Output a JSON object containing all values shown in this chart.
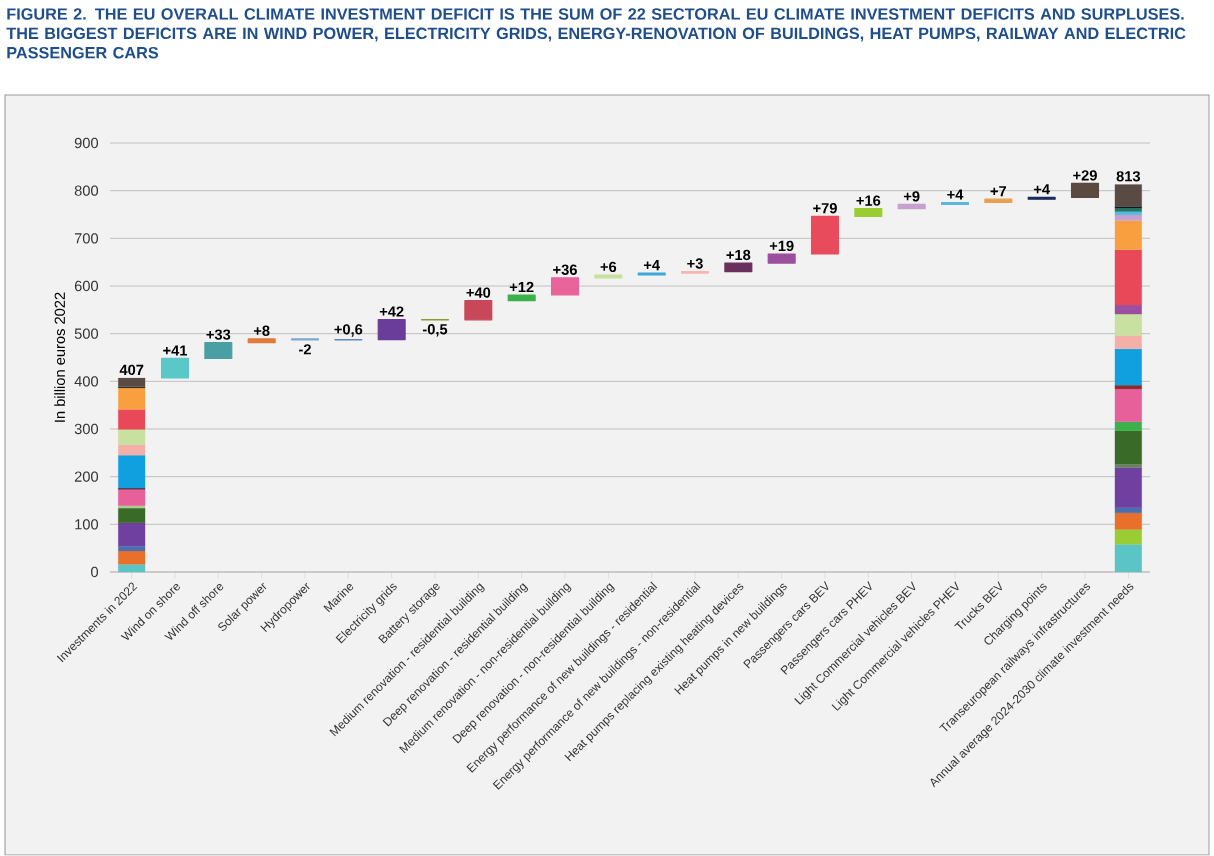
{
  "chart_data": {
    "type": "bar",
    "title": "FIGURE 2. THE EU OVERALL CLIMATE INVESTMENT DEFICIT IS THE SUM OF 22 SECTORAL EU CLIMATE INVESTMENT DEFICITS AND SURPLUSES. THE BIGGEST DEFICITS ARE IN WIND POWER, ELECTRICITY GRIDS, ENERGY-RENOVATION OF BUILDINGS, HEAT PUMPS, RAILWAY AND ELECTRIC PASSENGER CARS",
    "ylabel": "In billion euros 2022",
    "categories": [
      "Investments in 2022",
      "Wind on shore",
      "Wind off shore",
      "Solar power",
      "Hydropower",
      "Marine",
      "Electricity grids",
      "Battery storage",
      "Medium renovation - residential building",
      "Deep renovation - residential building",
      "Medium renovation - non-residential building",
      "Deep renovation - non-residential building",
      "Energy performance of new buildings - residential",
      "Energy performance of new buildings - non-residential",
      "Heat pumps replacing existing heating devices",
      "Heat pumps in new buildings",
      "Passengers cars BEV",
      "Passengers cars PHEV",
      "Light Commercial vehicles BEV",
      "Light Commercial vehicles PHEV",
      "Trucks BEV",
      "Charging points",
      "Transeuropean railways infrastructures",
      "Annual average 2024-2030 climate investment needs"
    ],
    "stacked": true,
    "series": [
      {
        "values": [
          16,
          null,
          null,
          null,
          null,
          null,
          null,
          null,
          null,
          null,
          null,
          null,
          null,
          null,
          null,
          null,
          null,
          null,
          null,
          null,
          null,
          null,
          null,
          58
        ],
        "colors": [
          "#5bc4c4",
          null,
          null,
          null,
          null,
          null,
          null,
          null,
          null,
          null,
          null,
          null,
          null,
          null,
          null,
          null,
          null,
          null,
          null,
          null,
          null,
          null,
          null,
          "#5bc4c4"
        ]
      },
      {
        "values": [
          28,
          null,
          null,
          null,
          null,
          null,
          null,
          null,
          null,
          null,
          null,
          null,
          null,
          null,
          null,
          null,
          null,
          null,
          null,
          null,
          null,
          null,
          null,
          31
        ],
        "colors": [
          "#e8702a",
          null,
          null,
          null,
          null,
          null,
          null,
          null,
          null,
          null,
          null,
          null,
          null,
          null,
          null,
          null,
          null,
          null,
          null,
          null,
          null,
          null,
          null,
          "#9acd32"
        ]
      },
      {
        "values": [
          10,
          null,
          null,
          null,
          null,
          null,
          null,
          null,
          null,
          null,
          null,
          null,
          null,
          null,
          null,
          null,
          null,
          null,
          null,
          null,
          null,
          null,
          null,
          35
        ],
        "colors": [
          "#4a6fb0",
          null,
          null,
          null,
          null,
          null,
          null,
          null,
          null,
          null,
          null,
          null,
          null,
          null,
          null,
          null,
          null,
          null,
          null,
          null,
          null,
          null,
          null,
          "#e8702a"
        ]
      },
      {
        "values": [
          49,
          null,
          null,
          null,
          null,
          null,
          null,
          null,
          null,
          null,
          null,
          null,
          null,
          null,
          null,
          null,
          null,
          null,
          null,
          null,
          null,
          null,
          null,
          11
        ],
        "colors": [
          "#7040a0",
          null,
          null,
          null,
          null,
          null,
          null,
          null,
          null,
          null,
          null,
          null,
          null,
          null,
          null,
          null,
          null,
          null,
          null,
          null,
          null,
          null,
          null,
          "#4a6fb0"
        ]
      },
      {
        "values": [
          31,
          null,
          null,
          null,
          null,
          null,
          null,
          null,
          null,
          null,
          null,
          null,
          null,
          null,
          null,
          null,
          null,
          null,
          null,
          null,
          null,
          null,
          null,
          84
        ],
        "colors": [
          "#3a6a28",
          null,
          null,
          null,
          null,
          null,
          null,
          null,
          null,
          null,
          null,
          null,
          null,
          null,
          null,
          null,
          null,
          null,
          null,
          null,
          null,
          null,
          null,
          "#7040a0"
        ]
      },
      {
        "values": [
          5,
          null,
          null,
          null,
          null,
          null,
          null,
          null,
          null,
          null,
          null,
          null,
          null,
          null,
          null,
          null,
          null,
          null,
          null,
          null,
          null,
          null,
          null,
          7
        ],
        "colors": [
          "#a8d08a",
          null,
          null,
          null,
          null,
          null,
          null,
          null,
          null,
          null,
          null,
          null,
          null,
          null,
          null,
          null,
          null,
          null,
          null,
          null,
          null,
          null,
          null,
          "#6a8060"
        ]
      },
      {
        "values": [
          34,
          null,
          null,
          null,
          null,
          null,
          null,
          null,
          null,
          null,
          null,
          null,
          null,
          null,
          null,
          null,
          null,
          null,
          null,
          null,
          null,
          null,
          null,
          70
        ],
        "colors": [
          "#e8609a",
          null,
          null,
          null,
          null,
          null,
          null,
          null,
          null,
          null,
          null,
          null,
          null,
          null,
          null,
          null,
          null,
          null,
          null,
          null,
          null,
          null,
          null,
          "#3a6a28"
        ]
      },
      {
        "values": [
          3,
          null,
          null,
          null,
          null,
          null,
          null,
          null,
          null,
          null,
          null,
          null,
          null,
          null,
          null,
          null,
          null,
          null,
          null,
          null,
          null,
          null,
          null,
          19
        ],
        "colors": [
          "#5a2030",
          null,
          null,
          null,
          null,
          null,
          null,
          null,
          null,
          null,
          null,
          null,
          null,
          null,
          null,
          null,
          null,
          null,
          null,
          null,
          null,
          null,
          null,
          "#3cb04a"
        ]
      },
      {
        "values": [
          69,
          null,
          null,
          null,
          null,
          null,
          null,
          null,
          null,
          null,
          null,
          null,
          null,
          null,
          null,
          null,
          null,
          null,
          null,
          null,
          null,
          null,
          null,
          69
        ],
        "colors": [
          "#10a0e0",
          null,
          null,
          null,
          null,
          null,
          null,
          null,
          null,
          null,
          null,
          null,
          null,
          null,
          null,
          null,
          null,
          null,
          null,
          null,
          null,
          null,
          null,
          "#e8609a"
        ]
      },
      {
        "values": [
          22,
          null,
          null,
          null,
          null,
          null,
          null,
          null,
          null,
          null,
          null,
          null,
          null,
          null,
          null,
          null,
          null,
          null,
          null,
          null,
          null,
          null,
          null,
          8
        ],
        "colors": [
          "#f4b0a8",
          null,
          null,
          null,
          null,
          null,
          null,
          null,
          null,
          null,
          null,
          null,
          null,
          null,
          null,
          null,
          null,
          null,
          null,
          null,
          null,
          null,
          null,
          "#8a2a2a"
        ]
      },
      {
        "values": [
          32,
          null,
          null,
          null,
          null,
          null,
          null,
          null,
          null,
          null,
          null,
          null,
          null,
          null,
          null,
          null,
          null,
          null,
          null,
          null,
          null,
          null,
          null,
          76
        ],
        "colors": [
          "#c8e0a0",
          null,
          null,
          null,
          null,
          null,
          null,
          null,
          null,
          null,
          null,
          null,
          null,
          null,
          null,
          null,
          null,
          null,
          null,
          null,
          null,
          null,
          null,
          "#10a0e0"
        ]
      },
      {
        "values": [
          42,
          null,
          null,
          null,
          null,
          null,
          null,
          null,
          null,
          null,
          null,
          null,
          null,
          null,
          null,
          null,
          null,
          null,
          null,
          null,
          null,
          null,
          null,
          28
        ],
        "colors": [
          "#e84858",
          null,
          null,
          null,
          null,
          null,
          null,
          null,
          null,
          null,
          null,
          null,
          null,
          null,
          null,
          null,
          null,
          null,
          null,
          null,
          null,
          null,
          null,
          "#f4b0a8"
        ]
      },
      {
        "values": [
          45,
          null,
          null,
          null,
          null,
          null,
          null,
          null,
          null,
          null,
          null,
          null,
          null,
          null,
          null,
          null,
          null,
          null,
          null,
          null,
          null,
          null,
          null,
          45
        ],
        "colors": [
          "#f8a040",
          null,
          null,
          null,
          null,
          null,
          null,
          null,
          null,
          null,
          null,
          null,
          null,
          null,
          null,
          null,
          null,
          null,
          null,
          null,
          null,
          null,
          null,
          "#c8e0a0"
        ]
      },
      {
        "values": [
          3,
          null,
          null,
          null,
          null,
          null,
          null,
          null,
          null,
          null,
          null,
          null,
          null,
          null,
          null,
          null,
          null,
          null,
          null,
          null,
          null,
          null,
          null,
          19
        ],
        "colors": [
          "#303030",
          null,
          null,
          null,
          null,
          null,
          null,
          null,
          null,
          null,
          null,
          null,
          null,
          null,
          null,
          null,
          null,
          null,
          null,
          null,
          null,
          null,
          null,
          "#9b4f9e"
        ]
      },
      {
        "values": [
          18,
          null,
          null,
          null,
          null,
          null,
          null,
          null,
          null,
          null,
          null,
          null,
          null,
          null,
          null,
          null,
          null,
          null,
          null,
          null,
          null,
          null,
          null,
          116
        ],
        "colors": [
          "#5a4a44",
          null,
          null,
          null,
          null,
          null,
          null,
          null,
          null,
          null,
          null,
          null,
          null,
          null,
          null,
          null,
          null,
          null,
          null,
          null,
          null,
          null,
          null,
          "#e84858"
        ]
      },
      {
        "values": [
          null,
          null,
          null,
          null,
          null,
          null,
          null,
          null,
          null,
          null,
          null,
          null,
          null,
          null,
          null,
          null,
          null,
          null,
          null,
          null,
          null,
          null,
          null,
          61
        ],
        "colors": [
          null,
          null,
          null,
          null,
          null,
          null,
          null,
          null,
          null,
          null,
          null,
          null,
          null,
          null,
          null,
          null,
          null,
          null,
          null,
          null,
          null,
          null,
          null,
          "#f8a040"
        ]
      },
      {
        "values": [
          null,
          null,
          null,
          null,
          null,
          null,
          null,
          null,
          null,
          null,
          null,
          null,
          null,
          null,
          null,
          null,
          null,
          null,
          null,
          null,
          null,
          null,
          null,
          12
        ],
        "colors": [
          null,
          null,
          null,
          null,
          null,
          null,
          null,
          null,
          null,
          null,
          null,
          null,
          null,
          null,
          null,
          null,
          null,
          null,
          null,
          null,
          null,
          null,
          null,
          "#c8a0d0"
        ]
      },
      {
        "values": [
          null,
          null,
          null,
          null,
          null,
          null,
          null,
          null,
          null,
          null,
          null,
          null,
          null,
          null,
          null,
          null,
          null,
          null,
          null,
          null,
          null,
          null,
          null,
          7
        ],
        "colors": [
          null,
          null,
          null,
          null,
          null,
          null,
          null,
          null,
          null,
          null,
          null,
          null,
          null,
          null,
          null,
          null,
          null,
          null,
          null,
          null,
          null,
          null,
          null,
          "#5bb8e0"
        ]
      },
      {
        "values": [
          null,
          null,
          null,
          null,
          null,
          null,
          null,
          null,
          null,
          null,
          null,
          null,
          null,
          null,
          null,
          null,
          null,
          null,
          null,
          null,
          null,
          null,
          null,
          7
        ],
        "colors": [
          null,
          null,
          null,
          null,
          null,
          null,
          null,
          null,
          null,
          null,
          null,
          null,
          null,
          null,
          null,
          null,
          null,
          null,
          null,
          null,
          null,
          null,
          null,
          "#1a7a6a"
        ]
      },
      {
        "values": [
          null,
          null,
          null,
          null,
          null,
          null,
          null,
          null,
          null,
          null,
          null,
          null,
          null,
          null,
          null,
          null,
          null,
          null,
          null,
          null,
          null,
          null,
          null,
          4
        ],
        "colors": [
          null,
          null,
          null,
          null,
          null,
          null,
          null,
          null,
          null,
          null,
          null,
          null,
          null,
          null,
          null,
          null,
          null,
          null,
          null,
          null,
          null,
          null,
          null,
          "#101820"
        ]
      },
      {
        "values": [
          null,
          null,
          null,
          null,
          null,
          null,
          null,
          null,
          null,
          null,
          null,
          null,
          null,
          null,
          null,
          null,
          null,
          null,
          null,
          null,
          null,
          null,
          null,
          46
        ],
        "colors": [
          null,
          null,
          null,
          null,
          null,
          null,
          null,
          null,
          null,
          null,
          null,
          null,
          null,
          null,
          null,
          null,
          null,
          null,
          null,
          null,
          null,
          null,
          null,
          "#5a4a44"
        ]
      },
      {
        "values": [
          null,
          41,
          33,
          8,
          -2,
          0.6,
          42,
          -0.5,
          40,
          12,
          36,
          6,
          4,
          3,
          18,
          19,
          79,
          16,
          9,
          4,
          7,
          4,
          29,
          null
        ],
        "base": [
          null,
          407,
          448,
          481,
          489,
          487,
          487.6,
          529.6,
          529.1,
          569.1,
          581.1,
          617.1,
          623.1,
          627.1,
          630.1,
          648.1,
          667.1,
          746.1,
          762.1,
          771.1,
          775.1,
          782.1,
          786.1,
          null
        ],
        "value_labels": [
          null,
          "+41",
          "+33",
          "+8",
          "-2",
          "+0,6",
          "+42",
          "-0,5",
          "+40",
          "+12",
          "+36",
          "+6",
          "+4",
          "+3",
          "+18",
          "+19",
          "+79",
          "+16",
          "+9",
          "+4",
          "+7",
          "+4",
          "+29",
          null
        ],
        "colors": [
          null,
          "#5bc8c8",
          "#4a9fa5",
          "#e07b39",
          "#7fa8d0",
          "#5a8ab8",
          "#6a3d9a",
          "#8a9a3a",
          "#c8485a",
          "#3cb04a",
          "#e8649a",
          "#c8e09a",
          "#3aa8d8",
          "#f4b8b0",
          "#6b2f5e",
          "#9b4f9e",
          "#e84c5c",
          "#9acd32",
          "#c8a0d0",
          "#5bb8e0",
          "#e8a050",
          "#1a2a5a",
          "#5a4a40",
          null
        ]
      }
    ],
    "totals": [
      "407",
      null,
      null,
      null,
      null,
      null,
      null,
      null,
      null,
      null,
      null,
      null,
      null,
      null,
      null,
      null,
      null,
      null,
      null,
      null,
      null,
      null,
      null,
      "813"
    ],
    "ylim": [
      0,
      900
    ],
    "yticks": [
      0,
      100,
      200,
      300,
      400,
      500,
      600,
      700,
      800,
      900
    ],
    "grid": "y"
  }
}
